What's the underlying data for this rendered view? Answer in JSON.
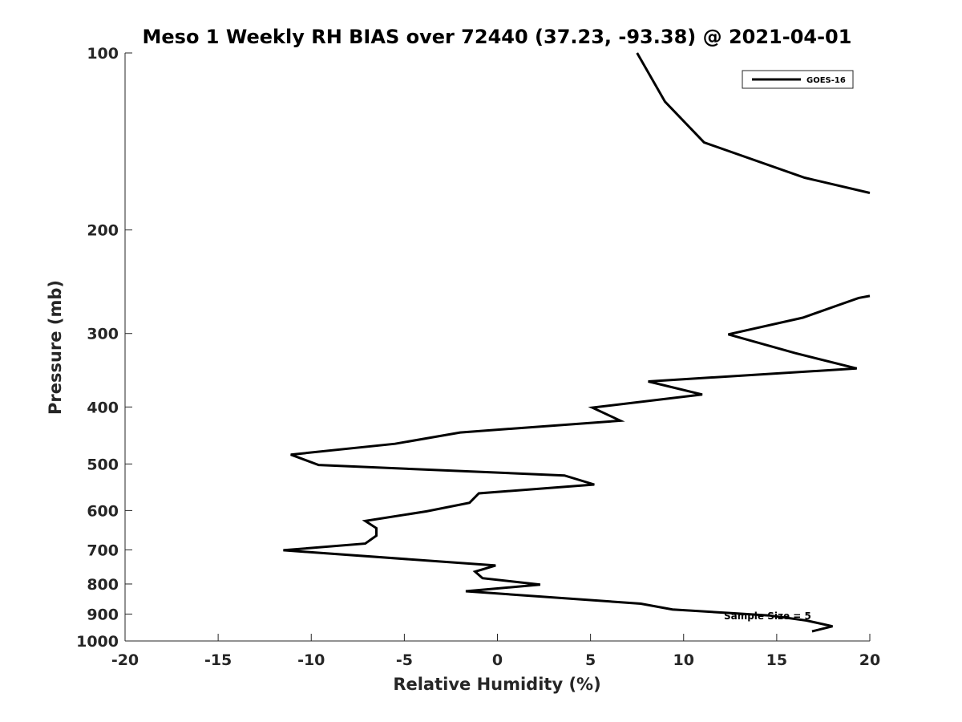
{
  "chart_data": {
    "type": "line",
    "title": "Meso 1 Weekly RH BIAS over 72440 (37.23, -93.38) @ 2021-04-01",
    "xlabel": "Relative Humidity (%)",
    "ylabel": "Pressure (mb)",
    "xlim": [
      -20,
      20
    ],
    "ylim": [
      1000,
      100
    ],
    "y_scale": "log",
    "x_ticks": [
      -20,
      -15,
      -10,
      -5,
      0,
      5,
      10,
      15,
      20
    ],
    "y_ticks": [
      100,
      200,
      300,
      400,
      500,
      600,
      700,
      800,
      900,
      1000
    ],
    "grid": false,
    "legend_position": "top-right",
    "series": [
      {
        "name": "GOES-16",
        "color": "#000000",
        "segments": [
          [
            {
              "x": 7.5,
              "y": 100
            },
            {
              "x": 9.0,
              "y": 121
            },
            {
              "x": 11.1,
              "y": 142
            },
            {
              "x": 16.5,
              "y": 163
            },
            {
              "x": 20.0,
              "y": 173
            }
          ],
          [
            {
              "x": 20.0,
              "y": 259
            },
            {
              "x": 19.4,
              "y": 261
            },
            {
              "x": 16.4,
              "y": 282
            },
            {
              "x": 12.4,
              "y": 301
            },
            {
              "x": 16.0,
              "y": 324
            },
            {
              "x": 19.3,
              "y": 344
            },
            {
              "x": 8.1,
              "y": 362
            },
            {
              "x": 11.0,
              "y": 381
            },
            {
              "x": 5.1,
              "y": 401
            },
            {
              "x": 6.6,
              "y": 422
            },
            {
              "x": -2.0,
              "y": 442
            },
            {
              "x": -5.5,
              "y": 462
            },
            {
              "x": -11.1,
              "y": 482
            },
            {
              "x": -9.6,
              "y": 502
            },
            {
              "x": 3.6,
              "y": 523
            },
            {
              "x": 5.2,
              "y": 542
            },
            {
              "x": -1.0,
              "y": 561
            },
            {
              "x": -1.5,
              "y": 582
            },
            {
              "x": -3.8,
              "y": 602
            },
            {
              "x": -7.1,
              "y": 625
            },
            {
              "x": -6.5,
              "y": 643
            },
            {
              "x": -6.5,
              "y": 662
            },
            {
              "x": -7.1,
              "y": 683
            },
            {
              "x": -11.5,
              "y": 701
            },
            {
              "x": -0.1,
              "y": 744
            },
            {
              "x": -1.2,
              "y": 762
            },
            {
              "x": -0.8,
              "y": 782
            },
            {
              "x": 2.3,
              "y": 802
            },
            {
              "x": -1.7,
              "y": 823
            },
            {
              "x": 7.7,
              "y": 864
            },
            {
              "x": 9.4,
              "y": 884
            },
            {
              "x": 14.6,
              "y": 905
            },
            {
              "x": 16.6,
              "y": 923
            },
            {
              "x": 18.0,
              "y": 944
            },
            {
              "x": 16.9,
              "y": 963
            }
          ]
        ]
      }
    ],
    "annotations": [
      {
        "text": "Sample Size = 5",
        "x": 15.0,
        "y": 905
      }
    ]
  }
}
